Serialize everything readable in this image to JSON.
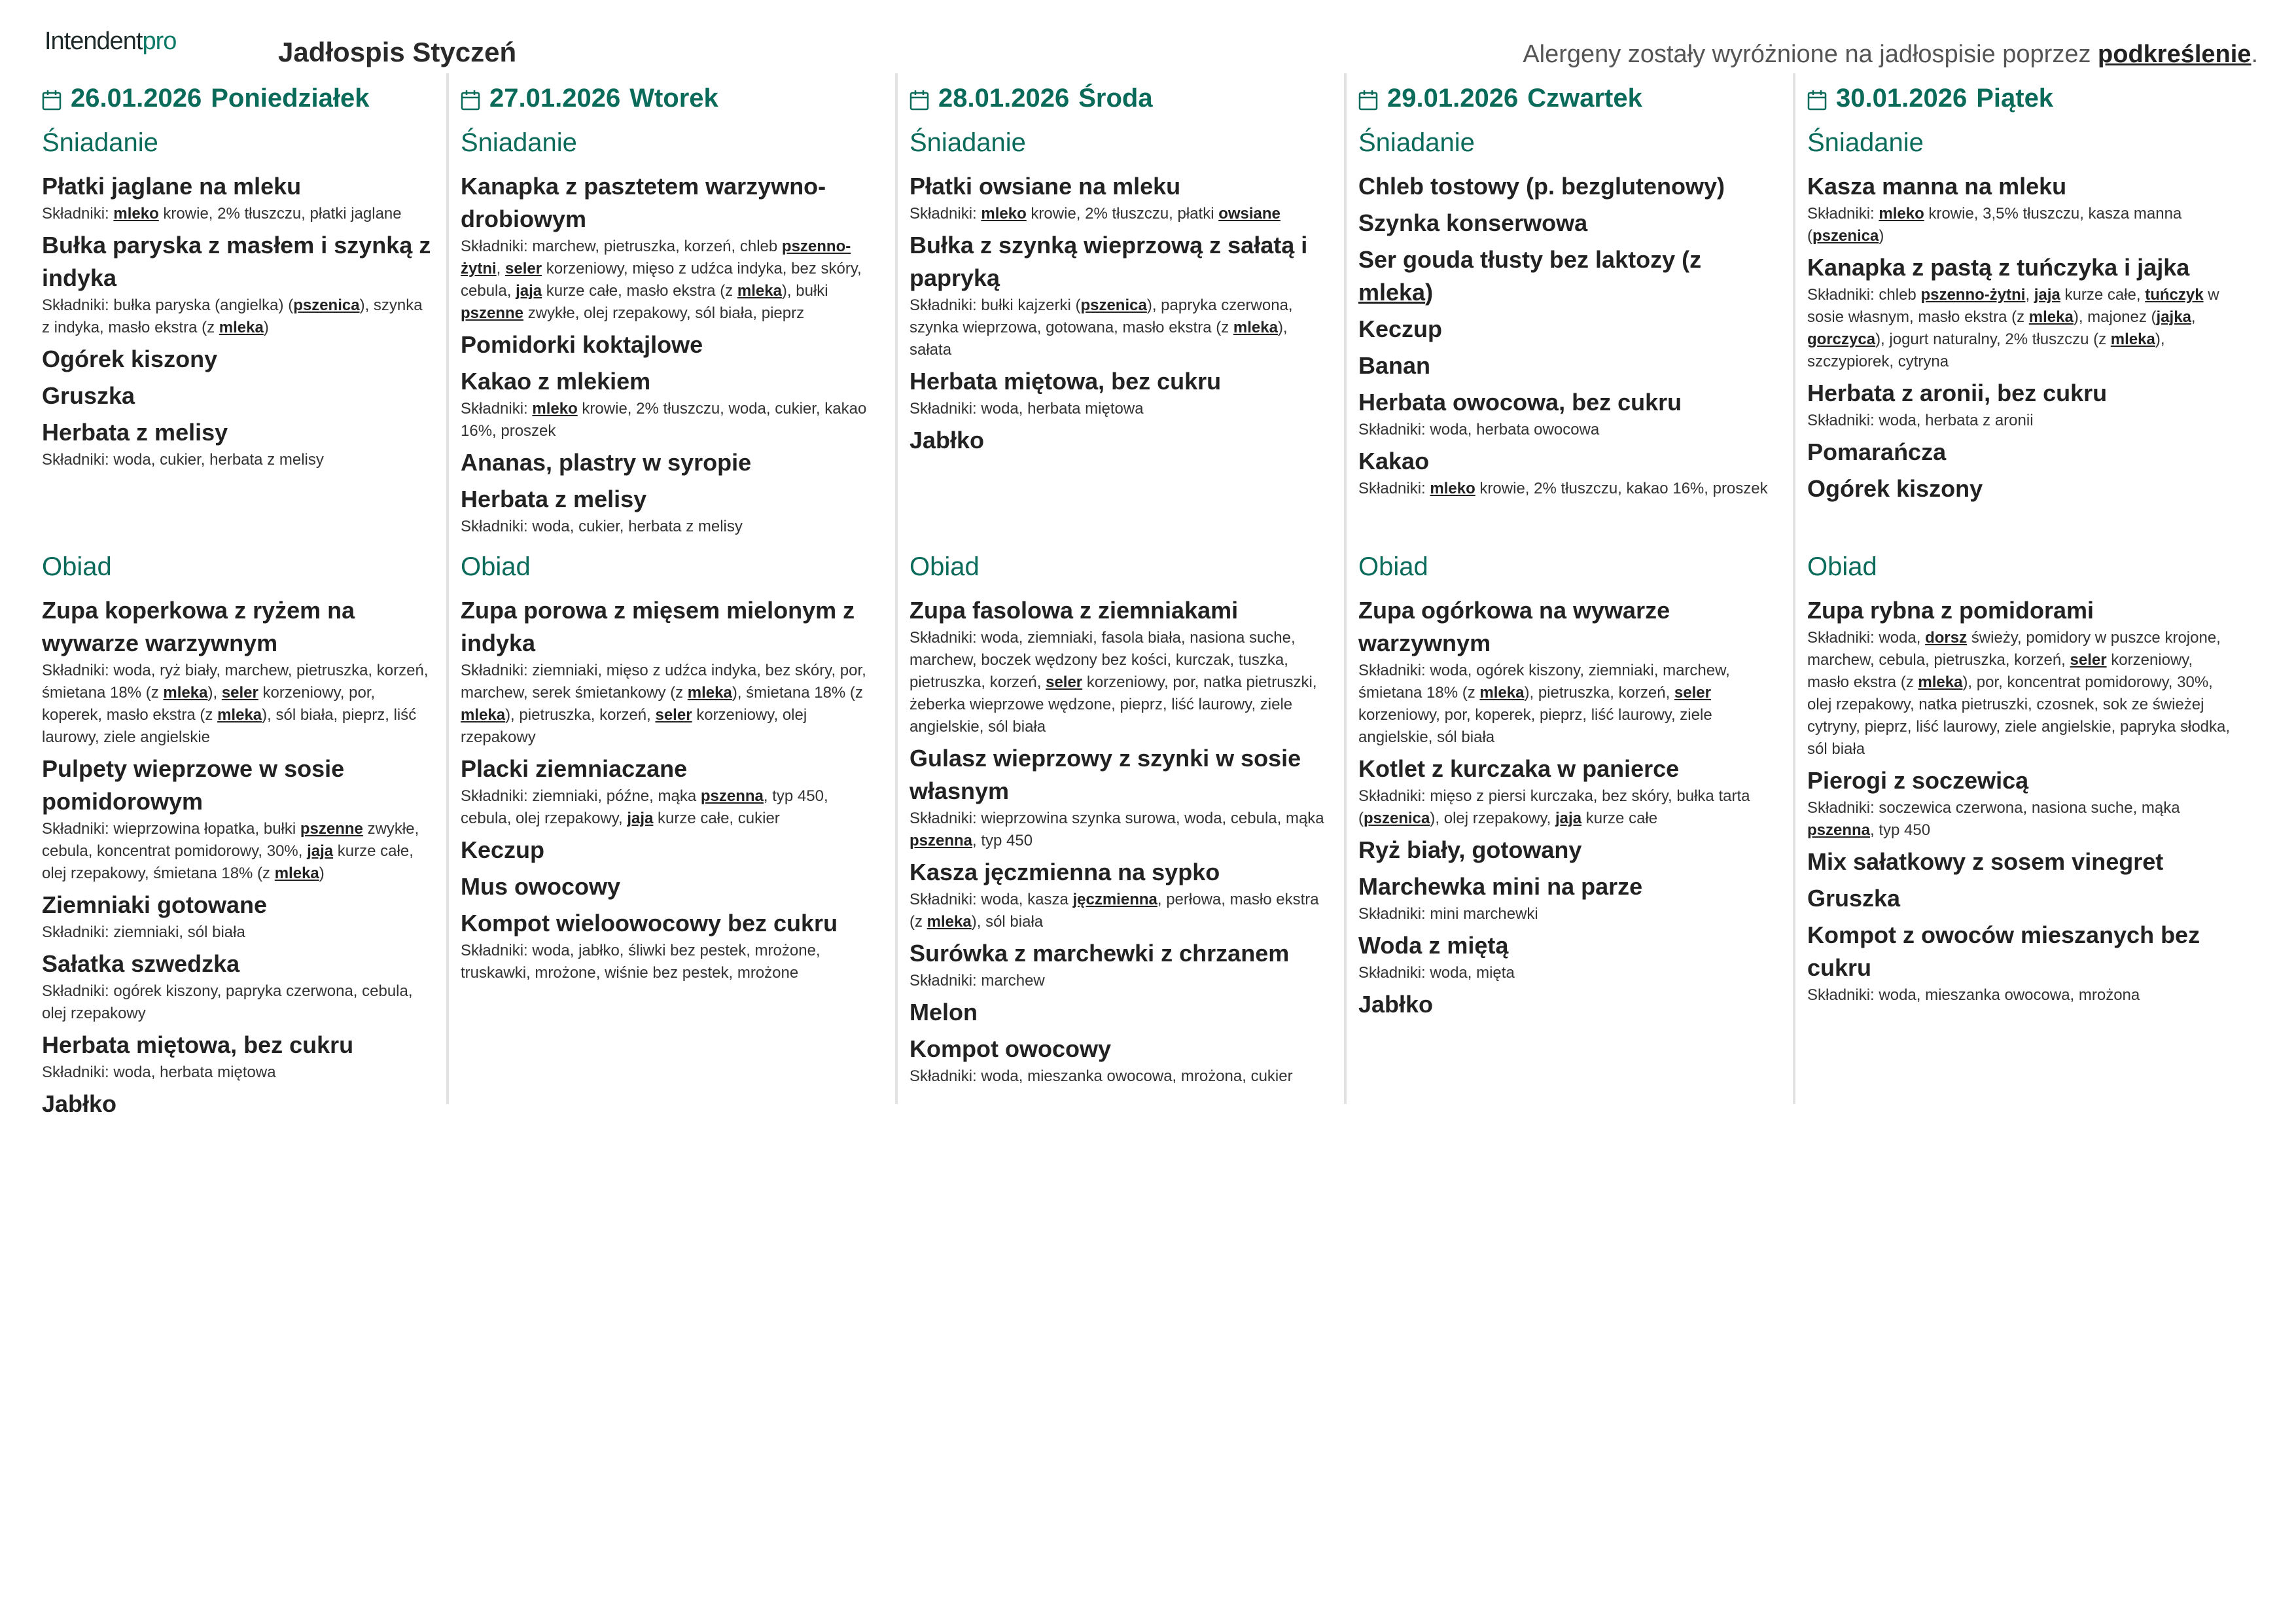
{
  "header": {
    "logo_main": "Intendent",
    "logo_accent": "pro",
    "title": "Jadłospis Styczeń",
    "note_prefix": "Alergeny zostały wyróżnione na jadłospisie poprzez ",
    "note_emph": "podkreślenie",
    "note_suffix": "."
  },
  "colors": {
    "accent": "#0b6b5a",
    "text": "#222222",
    "divider": "#e2e2e2"
  },
  "icons": {
    "day": "calendar-icon"
  },
  "ingredients_label": "Składniki: ",
  "days": [
    {
      "date": "26.01.2026",
      "weekday": "Poniedziałek",
      "meals": [
        {
          "name": "Śniadanie",
          "dishes": [
            {
              "name": [
                "Płatki jaglane na mleku"
              ],
              "ing": [
                {
                  "a": "mleko"
                },
                " krowie, 2% tłuszczu, płatki jaglane"
              ]
            },
            {
              "name": [
                "Bułka paryska z masłem i szynką z indyka"
              ],
              "ing": [
                "bułka paryska (angielka) (",
                {
                  "a": "pszenica"
                },
                "), szynka z indyka, masło ekstra  (z ",
                {
                  "a": "mleka"
                },
                ")"
              ]
            },
            {
              "name": [
                "Ogórek kiszony"
              ]
            },
            {
              "name": [
                "Gruszka"
              ]
            },
            {
              "name": [
                "Herbata z melisy"
              ],
              "ing": [
                "woda, cukier, herbata z melisy"
              ]
            }
          ]
        },
        {
          "name": "Obiad",
          "dishes": [
            {
              "name": [
                "Zupa koperkowa z ryżem na wywarze warzywnym"
              ],
              "ing": [
                "woda, ryż biały, marchew, pietruszka, korzeń, śmietana 18%  (z ",
                {
                  "a": "mleka"
                },
                "), ",
                {
                  "a": "seler"
                },
                " korzeniowy, por, koperek, masło ekstra  (z ",
                {
                  "a": "mleka"
                },
                "), sól biała, pieprz, liść laurowy, ziele angielskie"
              ]
            },
            {
              "name": [
                "Pulpety wieprzowe w sosie pomidorowym"
              ],
              "ing": [
                "wieprzowina łopatka, bułki ",
                {
                  "a": "pszenne"
                },
                " zwykłe, cebula, koncentrat pomidorowy, 30%, ",
                {
                  "a": "jaja"
                },
                " kurze całe, olej rzepakowy, śmietana 18%  (z ",
                {
                  "a": "mleka"
                },
                ")"
              ]
            },
            {
              "name": [
                "Ziemniaki gotowane"
              ],
              "ing": [
                "ziemniaki, sól biała"
              ]
            },
            {
              "name": [
                "Sałatka szwedzka"
              ],
              "ing": [
                "ogórek kiszony, papryka czerwona, cebula, olej rzepakowy"
              ]
            },
            {
              "name": [
                "Herbata miętowa, bez cukru"
              ],
              "ing": [
                "woda, herbata miętowa"
              ]
            },
            {
              "name": [
                "Jabłko"
              ]
            }
          ]
        }
      ]
    },
    {
      "date": "27.01.2026",
      "weekday": "Wtorek",
      "meals": [
        {
          "name": "Śniadanie",
          "dishes": [
            {
              "name": [
                "Kanapka z pasztetem warzywno-drobiowym"
              ],
              "ing": [
                "marchew, pietruszka, korzeń, chleb ",
                {
                  "a": "pszenno-żytni"
                },
                ", ",
                {
                  "a": "seler"
                },
                " korzeniowy, mięso z udźca indyka, bez skóry, cebula, ",
                {
                  "a": "jaja"
                },
                " kurze całe, masło ekstra  (z ",
                {
                  "a": "mleka"
                },
                "), bułki ",
                {
                  "a": "pszenne"
                },
                " zwykłe, olej rzepakowy, sól biała, pieprz"
              ]
            },
            {
              "name": [
                "Pomidorki koktajlowe"
              ]
            },
            {
              "name": [
                "Kakao z mlekiem"
              ],
              "ing": [
                {
                  "a": "mleko"
                },
                " krowie, 2% tłuszczu, woda, cukier, kakao 16%, proszek"
              ]
            },
            {
              "name": [
                "Ananas, plastry w syropie"
              ]
            },
            {
              "name": [
                "Herbata z melisy"
              ],
              "ing": [
                "woda, cukier, herbata z melisy"
              ]
            }
          ]
        },
        {
          "name": "Obiad",
          "dishes": [
            {
              "name": [
                "Zupa porowa z mięsem mielonym z indyka"
              ],
              "ing": [
                "ziemniaki, mięso z udźca indyka, bez skóry, por, marchew, serek śmietankowy  (z ",
                {
                  "a": "mleka"
                },
                "), śmietana 18%  (z ",
                {
                  "a": "mleka"
                },
                "), pietruszka, korzeń, ",
                {
                  "a": "seler"
                },
                " korzeniowy, olej rzepakowy"
              ]
            },
            {
              "name": [
                "Placki ziemniaczane"
              ],
              "ing": [
                "ziemniaki, późne, mąka ",
                {
                  "a": "pszenna"
                },
                ", typ 450, cebula, olej rzepakowy, ",
                {
                  "a": "jaja"
                },
                " kurze całe, cukier"
              ]
            },
            {
              "name": [
                "Keczup"
              ]
            },
            {
              "name": [
                "Mus owocowy"
              ]
            },
            {
              "name": [
                "Kompot wieloowocowy bez cukru"
              ],
              "ing": [
                "woda, jabłko, śliwki bez pestek, mrożone, truskawki, mrożone, wiśnie bez pestek, mrożone"
              ]
            }
          ]
        }
      ]
    },
    {
      "date": "28.01.2026",
      "weekday": "Środa",
      "meals": [
        {
          "name": "Śniadanie",
          "dishes": [
            {
              "name": [
                "Płatki owsiane na mleku"
              ],
              "ing": [
                {
                  "a": "mleko"
                },
                " krowie, 2% tłuszczu, płatki ",
                {
                  "a": "owsiane"
                }
              ]
            },
            {
              "name": [
                "Bułka z szynką wieprzową z sałatą i papryką"
              ],
              "ing": [
                "bułki kajzerki (",
                {
                  "a": "pszenica"
                },
                "), papryka czerwona, szynka wieprzowa, gotowana, masło ekstra (z ",
                {
                  "a": "mleka"
                },
                "), sałata"
              ]
            },
            {
              "name": [
                "Herbata miętowa, bez cukru"
              ],
              "ing": [
                "woda, herbata miętowa"
              ]
            },
            {
              "name": [
                "Jabłko"
              ]
            }
          ]
        },
        {
          "name": "Obiad",
          "dishes": [
            {
              "name": [
                "Zupa fasolowa z ziemniakami"
              ],
              "ing": [
                "woda, ziemniaki, fasola biała, nasiona suche, marchew, boczek wędzony bez kości, kurczak, tuszka, pietruszka, korzeń, ",
                {
                  "a": "seler"
                },
                " korzeniowy, por, natka pietruszki, żeberka wieprzowe wędzone, pieprz, liść laurowy, ziele angielskie, sól biała"
              ]
            },
            {
              "name": [
                "Gulasz wieprzowy z szynki w sosie własnym"
              ],
              "ing": [
                "wieprzowina szynka surowa, woda, cebula, mąka ",
                {
                  "a": "pszenna"
                },
                ", typ 450"
              ]
            },
            {
              "name": [
                "Kasza jęczmienna na sypko"
              ],
              "ing": [
                "woda, kasza ",
                {
                  "a": "jęczmienna"
                },
                ", perłowa, masło ekstra  (z ",
                {
                  "a": "mleka"
                },
                "), sól biała"
              ]
            },
            {
              "name": [
                "Surówka z marchewki z chrzanem"
              ],
              "ing": [
                "marchew"
              ]
            },
            {
              "name": [
                "Melon"
              ]
            },
            {
              "name": [
                "Kompot owocowy"
              ],
              "ing": [
                "woda, mieszanka owocowa, mrożona, cukier"
              ]
            }
          ]
        }
      ]
    },
    {
      "date": "29.01.2026",
      "weekday": "Czwartek",
      "meals": [
        {
          "name": "Śniadanie",
          "dishes": [
            {
              "name": [
                "Chleb tostowy (p. bezglutenowy)"
              ]
            },
            {
              "name": [
                "Szynka konserwowa"
              ]
            },
            {
              "name": [
                "Ser gouda tłusty bez laktozy  (z ",
                {
                  "a": "mleka"
                },
                ")"
              ]
            },
            {
              "name": [
                "Keczup"
              ]
            },
            {
              "name": [
                "Banan"
              ]
            },
            {
              "name": [
                "Herbata owocowa, bez cukru"
              ],
              "ing": [
                "woda, herbata owocowa"
              ]
            },
            {
              "name": [
                "Kakao"
              ],
              "ing": [
                {
                  "a": "mleko"
                },
                " krowie, 2% tłuszczu, kakao 16%, proszek"
              ]
            }
          ]
        },
        {
          "name": "Obiad",
          "dishes": [
            {
              "name": [
                "Zupa ogórkowa na wywarze warzywnym"
              ],
              "ing": [
                "woda, ogórek kiszony, ziemniaki, marchew, śmietana 18%  (z ",
                {
                  "a": "mleka"
                },
                "), pietruszka, korzeń, ",
                {
                  "a": "seler"
                },
                " korzeniowy, por, koperek, pieprz, liść laurowy, ziele angielskie, sól biała"
              ]
            },
            {
              "name": [
                "Kotlet z kurczaka w panierce"
              ],
              "ing": [
                "mięso z piersi kurczaka, bez skóry, bułka tarta (",
                {
                  "a": "pszenica"
                },
                "), olej rzepakowy, ",
                {
                  "a": "jaja"
                },
                " kurze całe"
              ]
            },
            {
              "name": [
                "Ryż biały, gotowany"
              ]
            },
            {
              "name": [
                "Marchewka mini na parze"
              ],
              "ing": [
                "mini marchewki"
              ]
            },
            {
              "name": [
                "Woda z miętą"
              ],
              "ing": [
                "woda, mięta"
              ]
            },
            {
              "name": [
                "Jabłko"
              ]
            }
          ]
        }
      ]
    },
    {
      "date": "30.01.2026",
      "weekday": "Piątek",
      "meals": [
        {
          "name": "Śniadanie",
          "dishes": [
            {
              "name": [
                "Kasza manna na mleku"
              ],
              "ing": [
                {
                  "a": "mleko"
                },
                " krowie, 3,5% tłuszczu, kasza manna (",
                {
                  "a": "pszenica"
                },
                ")"
              ]
            },
            {
              "name": [
                "Kanapka z pastą z tuńczyka i jajka"
              ],
              "ing": [
                "chleb ",
                {
                  "a": "pszenno-żytni"
                },
                ", ",
                {
                  "a": "jaja"
                },
                " kurze całe, ",
                {
                  "a": "tuńczyk"
                },
                " w sosie własnym, masło ekstra  (z ",
                {
                  "a": "mleka"
                },
                "), majonez (",
                {
                  "a": "jajka"
                },
                ", ",
                {
                  "a": "gorczyca"
                },
                "), jogurt naturalny, 2% tłuszczu  (z ",
                {
                  "a": "mleka"
                },
                "), szczypiorek, cytryna"
              ]
            },
            {
              "name": [
                "Herbata z aronii, bez cukru"
              ],
              "ing": [
                "woda, herbata z aronii"
              ]
            },
            {
              "name": [
                "Pomarańcza"
              ]
            },
            {
              "name": [
                "Ogórek kiszony"
              ]
            }
          ]
        },
        {
          "name": "Obiad",
          "dishes": [
            {
              "name": [
                "Zupa rybna z pomidorami"
              ],
              "ing": [
                "woda, ",
                {
                  "a": "dorsz"
                },
                " świeży, pomidory w puszce krojone, marchew, cebula, pietruszka, korzeń, ",
                {
                  "a": "seler"
                },
                " korzeniowy, masło ekstra  (z ",
                {
                  "a": "mleka"
                },
                "), por, koncentrat pomidorowy, 30%, olej rzepakowy, natka pietruszki, czosnek, sok ze świeżej cytryny, pieprz, liść laurowy, ziele angielskie, papryka słodka, sól biała"
              ]
            },
            {
              "name": [
                "Pierogi z soczewicą"
              ],
              "ing": [
                "soczewica czerwona, nasiona suche, mąka ",
                {
                  "a": "pszenna"
                },
                ", typ 450"
              ]
            },
            {
              "name": [
                "Mix sałatkowy z sosem vinegret"
              ]
            },
            {
              "name": [
                "Gruszka"
              ]
            },
            {
              "name": [
                "Kompot z owoców mieszanych bez cukru"
              ],
              "ing": [
                "woda, mieszanka owocowa, mrożona"
              ]
            }
          ]
        }
      ]
    }
  ]
}
